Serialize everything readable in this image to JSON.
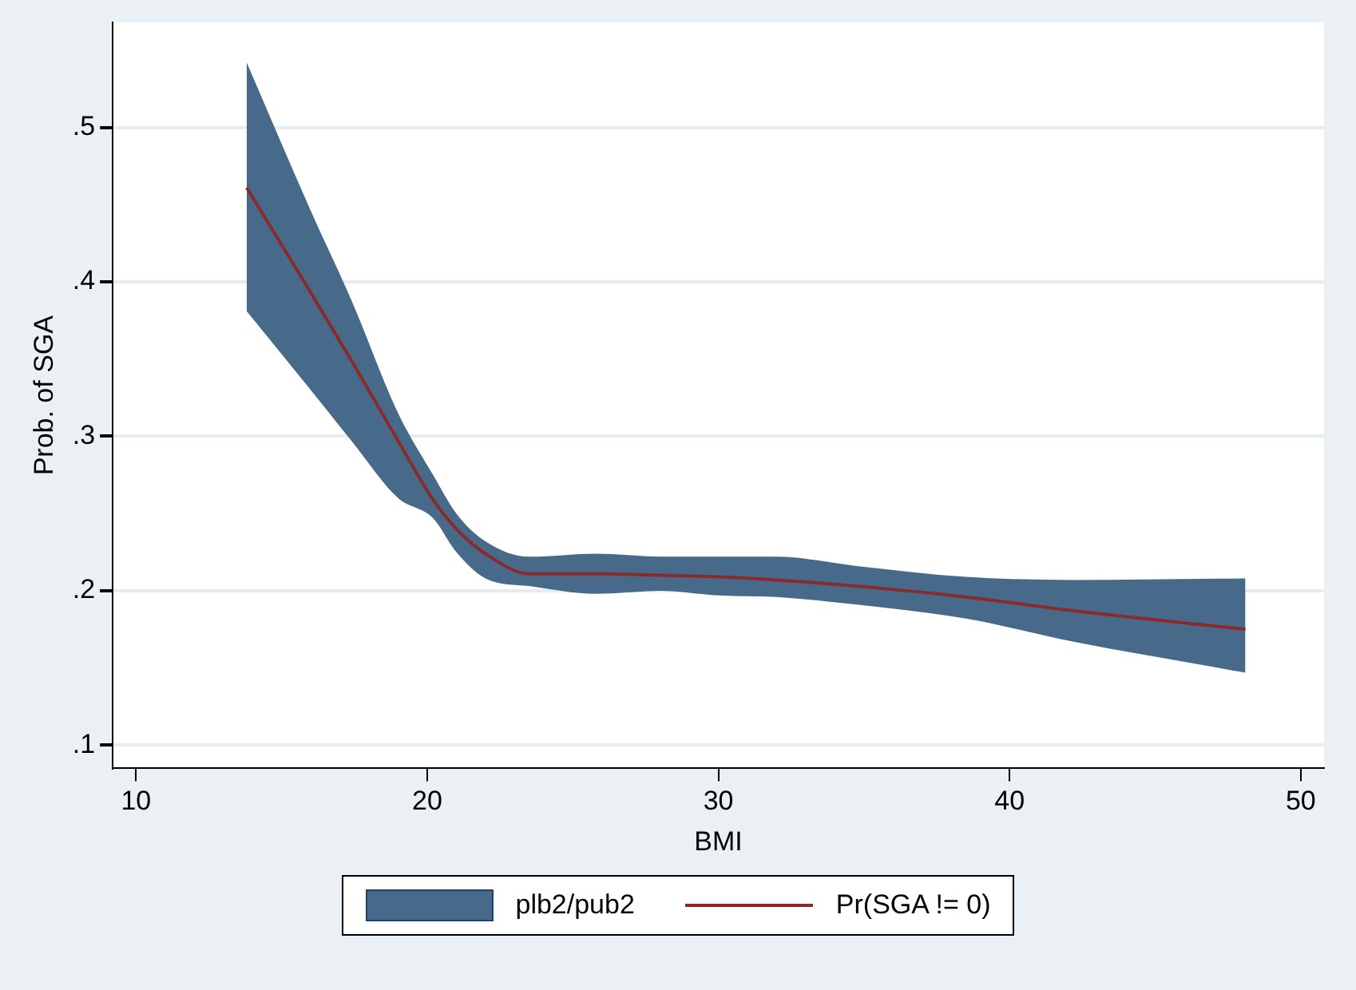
{
  "chart_data": {
    "type": "line",
    "xlabel": "BMI",
    "ylabel": "Prob. of SGA",
    "x": [
      13.8,
      16,
      17.4,
      19,
      20.2,
      21,
      22,
      23.5,
      25.8,
      28,
      30,
      32,
      34.75,
      38.5,
      42.2,
      48.1
    ],
    "series": [
      {
        "name": "Pr(SGA != 0)",
        "type": "line",
        "color": "#8b2a2a",
        "values": [
          0.461,
          0.393,
          0.349,
          0.297,
          0.259,
          0.24,
          0.224,
          0.211,
          0.211,
          0.21,
          0.209,
          0.207,
          0.203,
          0.196,
          0.187,
          0.175
        ],
        "lower": [
          0.381,
          0.33,
          0.297,
          0.26,
          0.247,
          0.225,
          0.208,
          0.203,
          0.198,
          0.2,
          0.197,
          0.196,
          0.191,
          0.182,
          0.167,
          0.147
        ],
        "upper": [
          0.542,
          0.446,
          0.388,
          0.315,
          0.275,
          0.25,
          0.232,
          0.222,
          0.224,
          0.222,
          0.222,
          0.222,
          0.216,
          0.209,
          0.207,
          0.208
        ]
      }
    ],
    "annotations": [
      "plb2/pub2"
    ],
    "xlim": [
      9.2,
      50.8
    ],
    "xticks": [
      10,
      20,
      30,
      40,
      50
    ],
    "ylim": [
      0.085,
      0.568
    ],
    "yticks": [
      {
        "value": 0.1,
        "label": ".1"
      },
      {
        "value": 0.2,
        "label": ".2"
      },
      {
        "value": 0.3,
        "label": ".3"
      },
      {
        "value": 0.4,
        "label": ".4"
      },
      {
        "value": 0.5,
        "label": ".5"
      }
    ],
    "grid": "y",
    "legend": "bottom",
    "marker": "none",
    "line_style": "solid"
  }
}
